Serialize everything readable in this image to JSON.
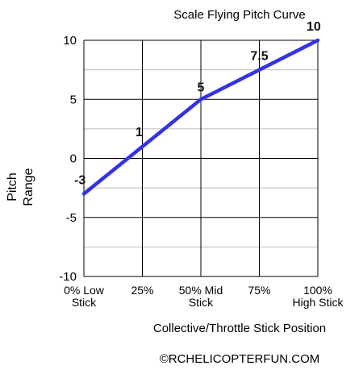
{
  "chart_data": {
    "type": "line",
    "title": "Scale Flying Pitch Curve",
    "ylabel_lines": [
      "Pitch",
      "Range"
    ],
    "xlabel": "Collective/Throttle Stick Position",
    "x_tick_labels": [
      [
        "0% Low",
        "Stick"
      ],
      [
        "25%"
      ],
      [
        "50% Mid",
        "Stick"
      ],
      [
        "75%"
      ],
      [
        "100%",
        "High Stick"
      ]
    ],
    "x_tick_values": [
      0,
      25,
      50,
      75,
      100
    ],
    "y_ticks": [
      "-10",
      "-5",
      "0",
      "5",
      "10"
    ],
    "y_tick_values": [
      -10,
      -5,
      0,
      5,
      10
    ],
    "xlim": [
      0,
      100
    ],
    "ylim": [
      -10,
      10
    ],
    "grid": true,
    "series": [
      {
        "x": [
          0,
          25,
          50,
          100
        ],
        "y": [
          -3,
          1,
          5,
          10
        ]
      }
    ],
    "point_labels": [
      {
        "x": 0,
        "y": -3,
        "text": "-3"
      },
      {
        "x": 25,
        "y": 1,
        "text": "1"
      },
      {
        "x": 50,
        "y": 5,
        "text": "5"
      },
      {
        "x": 75,
        "y": 7.5,
        "text": "7.5"
      },
      {
        "x": 100,
        "y": 10,
        "text": "10"
      }
    ],
    "line_color": "#3333e6",
    "grid_color": "#000000",
    "minor_grid_color": "#bbbbbb"
  },
  "copyright": "©RCHELICOPTERFUN.COM"
}
